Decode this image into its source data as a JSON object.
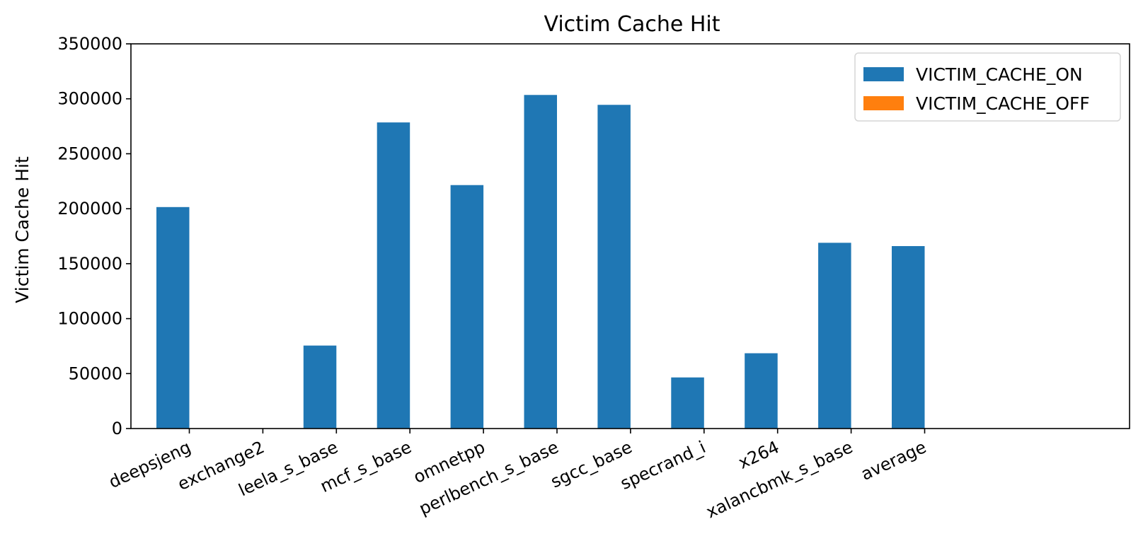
{
  "chart_data": {
    "type": "bar",
    "title": "Victim Cache Hit",
    "xlabel": "",
    "ylabel": "Victim Cache Hit",
    "ylim": [
      0,
      350000
    ],
    "yticks": [
      0,
      50000,
      100000,
      150000,
      200000,
      250000,
      300000,
      350000
    ],
    "categories": [
      "deepsjeng",
      "exchange2",
      "leela_s_base",
      "mcf_s_base",
      "omnetpp",
      "perlbench_s_base",
      "sgcc_base",
      "specrand_i",
      "x264",
      "xalancbmk_s_base",
      "average"
    ],
    "series": [
      {
        "name": "VICTIM_CACHE_ON",
        "color": "#1f77b4",
        "values": [
          201500,
          0,
          75500,
          278500,
          221500,
          303500,
          294500,
          46500,
          68500,
          169000,
          166000
        ]
      },
      {
        "name": "VICTIM_CACHE_OFF",
        "color": "#ff7f0e",
        "values": [
          0,
          0,
          0,
          0,
          0,
          0,
          0,
          0,
          0,
          0,
          0
        ]
      }
    ],
    "grid": false,
    "legend_position": "top-right"
  }
}
